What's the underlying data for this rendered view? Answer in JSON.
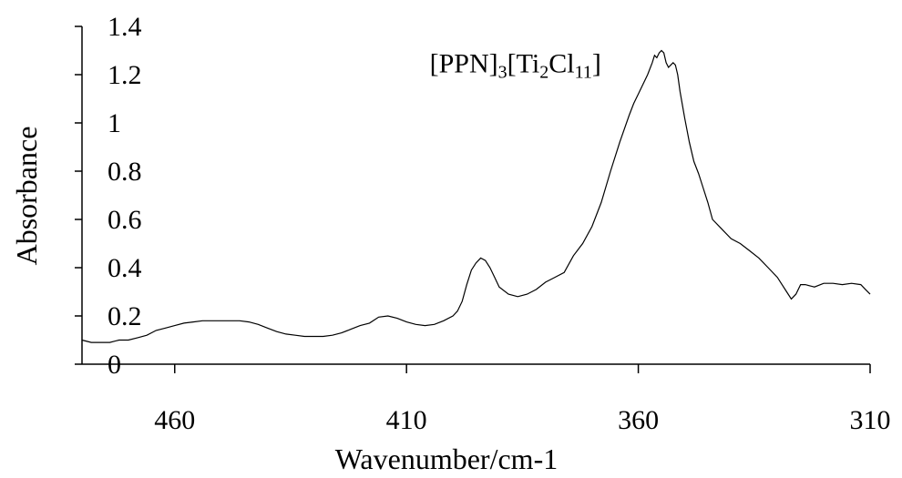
{
  "chart_data": {
    "type": "line",
    "xlabel": "Wavenumber/cm-1",
    "ylabel": "Absorbance",
    "xlim": [
      480,
      310
    ],
    "ylim": [
      0,
      1.4
    ],
    "x_reversed": true,
    "x_ticks": [
      "460",
      "410",
      "360",
      "310"
    ],
    "y_ticks": [
      "0",
      "0.2",
      "0.4",
      "0.6",
      "0.8",
      "1",
      "1.2",
      "1.4"
    ],
    "grid": false,
    "annotation": {
      "parts": [
        "[PPN]",
        "3",
        "[Ti",
        "2",
        "Cl",
        "11",
        "]"
      ],
      "subscripts": [
        false,
        true,
        false,
        true,
        false,
        true,
        false
      ],
      "x": 368,
      "y": 1.21
    },
    "series": [
      {
        "x": [
          480,
          478,
          476,
          474,
          472,
          470,
          468,
          466,
          464,
          462,
          460,
          458,
          456,
          454,
          452,
          450,
          448,
          446,
          444,
          442,
          440,
          438,
          436,
          434,
          432,
          430,
          428,
          426,
          424,
          422,
          420,
          418,
          416,
          414,
          412,
          410,
          408,
          406,
          404,
          402,
          400,
          399,
          398,
          397,
          396,
          395,
          394,
          393,
          392,
          391,
          390,
          388,
          386,
          384,
          382,
          380,
          378,
          376,
          374,
          372,
          370,
          368,
          366,
          364,
          362,
          361,
          360,
          359,
          358,
          357,
          356.5,
          356,
          355.5,
          355,
          354.5,
          354,
          353.5,
          353,
          352.5,
          352,
          351.5,
          351,
          350,
          349,
          348,
          347,
          346,
          345,
          344,
          342,
          340,
          338,
          336,
          334,
          332,
          330,
          329,
          328,
          327,
          326,
          325,
          324,
          322,
          320,
          318,
          316,
          314,
          312,
          311,
          310
        ],
        "y": [
          0.1,
          0.09,
          0.09,
          0.09,
          0.1,
          0.1,
          0.11,
          0.12,
          0.14,
          0.15,
          0.16,
          0.17,
          0.175,
          0.18,
          0.18,
          0.18,
          0.18,
          0.18,
          0.175,
          0.165,
          0.15,
          0.135,
          0.125,
          0.12,
          0.115,
          0.115,
          0.115,
          0.12,
          0.13,
          0.145,
          0.16,
          0.17,
          0.195,
          0.2,
          0.19,
          0.175,
          0.165,
          0.16,
          0.165,
          0.18,
          0.2,
          0.22,
          0.26,
          0.33,
          0.39,
          0.42,
          0.44,
          0.43,
          0.4,
          0.36,
          0.32,
          0.29,
          0.28,
          0.29,
          0.31,
          0.34,
          0.36,
          0.38,
          0.45,
          0.5,
          0.57,
          0.67,
          0.8,
          0.92,
          1.03,
          1.08,
          1.12,
          1.16,
          1.2,
          1.25,
          1.28,
          1.27,
          1.29,
          1.3,
          1.29,
          1.25,
          1.23,
          1.24,
          1.25,
          1.24,
          1.2,
          1.13,
          1.02,
          0.92,
          0.84,
          0.79,
          0.73,
          0.67,
          0.6,
          0.56,
          0.52,
          0.5,
          0.47,
          0.44,
          0.4,
          0.36,
          0.33,
          0.3,
          0.27,
          0.29,
          0.33,
          0.33,
          0.32,
          0.335,
          0.335,
          0.33,
          0.335,
          0.33,
          0.31,
          0.29
        ]
      }
    ]
  }
}
